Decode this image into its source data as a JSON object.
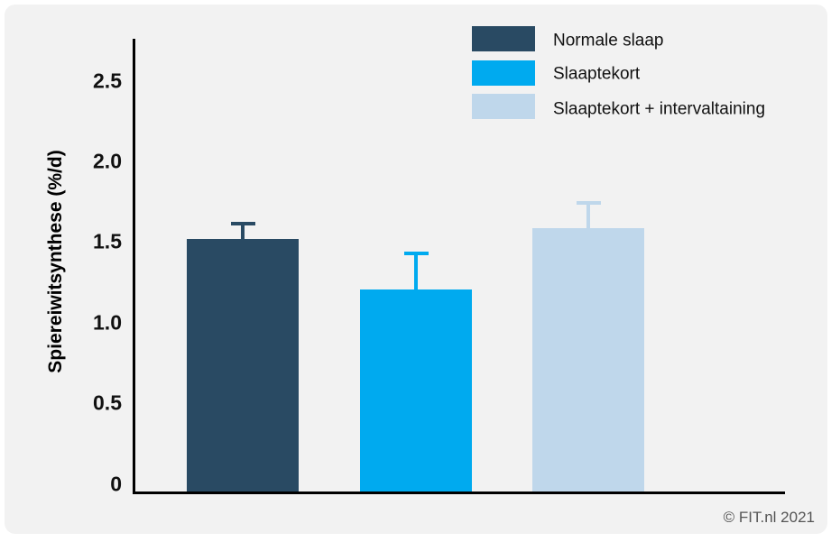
{
  "chart_data": {
    "type": "bar",
    "title": "",
    "xlabel": "",
    "ylabel": "Spiereiwitsynthese (%/d)",
    "ylim": [
      0,
      2.7
    ],
    "yticks": [
      "0",
      "0.5",
      "1.0",
      "1.5",
      "2.0",
      "2.5"
    ],
    "grid": false,
    "legend_position": "top-right",
    "categories": [
      "Normale slaap",
      "Slaaptekort",
      "Slaaptekort + intervaltaining"
    ],
    "values": [
      1.52,
      1.21,
      1.59
    ],
    "error_upper": [
      1.62,
      1.44,
      1.75
    ],
    "colors": [
      "#294a63",
      "#00aaef",
      "#bfd7eb"
    ]
  },
  "legend": [
    {
      "label": "Normale slaap",
      "color": "#294a63"
    },
    {
      "label": "Slaaptekort",
      "color": "#00aaef"
    },
    {
      "label": "Slaaptekort + intervaltaining",
      "color": "#bfd7eb"
    }
  ],
  "axis": {
    "ylabel": "Spiereiwitsynthese (%/d)",
    "ticks": [
      {
        "label": "2.5",
        "value": 2.5
      },
      {
        "label": "2.0",
        "value": 2.0
      },
      {
        "label": "1.5",
        "value": 1.5
      },
      {
        "label": "1.0",
        "value": 1.0
      },
      {
        "label": "0.5",
        "value": 0.5
      },
      {
        "label": "0",
        "value": 0
      }
    ]
  },
  "footer": {
    "copyright": "© FIT.nl 2021"
  }
}
